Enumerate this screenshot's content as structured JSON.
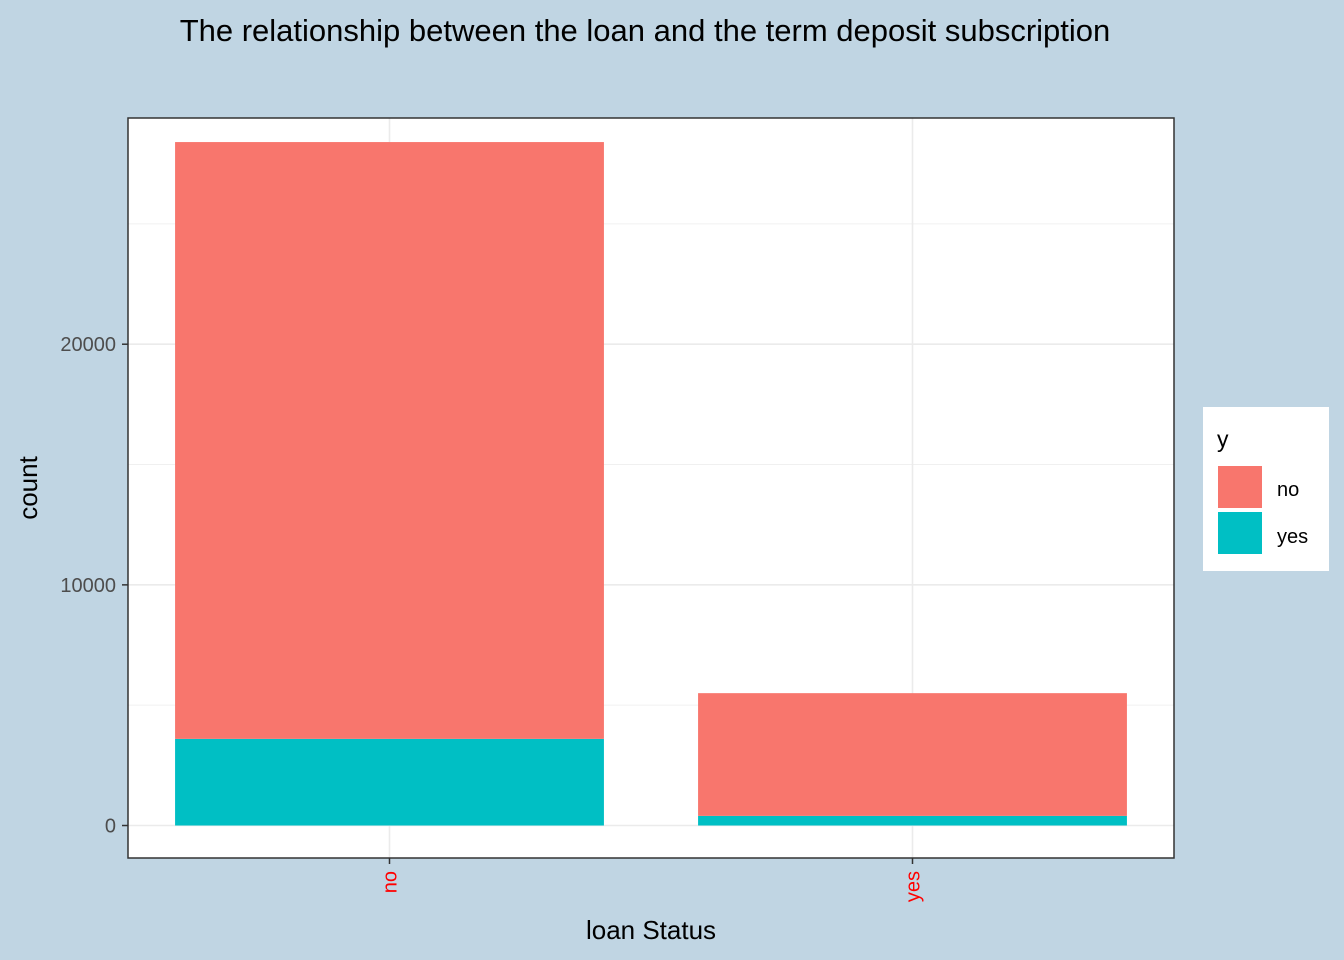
{
  "chart_data": {
    "type": "bar",
    "stacked": true,
    "title": "The relationship between the loan and the term deposit subscription",
    "xlabel": "loan Status",
    "ylabel": "count",
    "categories": [
      "no",
      "yes"
    ],
    "series": [
      {
        "name": "no",
        "values": [
          24800,
          5100
        ],
        "color": "#f8766d"
      },
      {
        "name": "yes",
        "values": [
          3600,
          400
        ],
        "color": "#00bfc4"
      }
    ],
    "ylim": [
      -1350,
      29400
    ],
    "yticks": [
      0,
      10000,
      20000
    ],
    "ytick_labels": [
      "0",
      "10000",
      "20000"
    ],
    "grid": true,
    "x_tick_color": "#ff0000",
    "x_tick_rotation": "vertical",
    "legend": {
      "title": "y",
      "position": "right",
      "entries": [
        "no",
        "yes"
      ]
    }
  }
}
